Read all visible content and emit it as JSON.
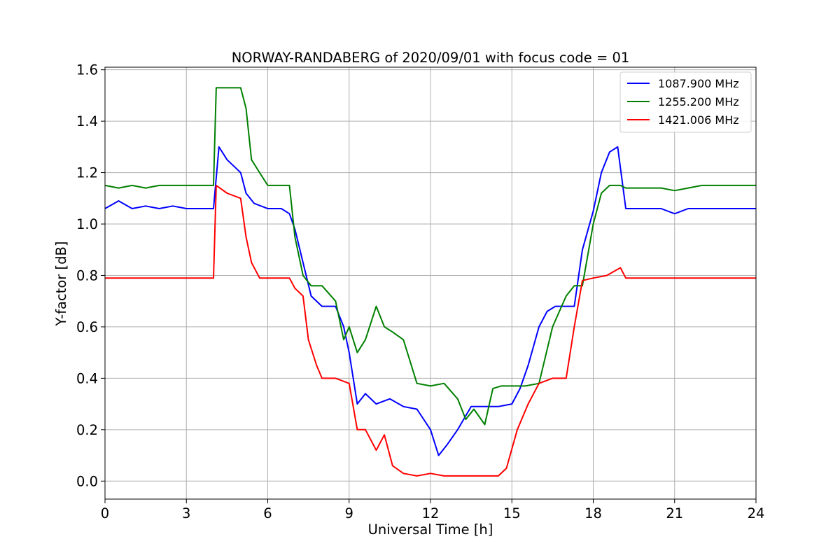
{
  "chart_data": {
    "type": "line",
    "title": "NORWAY-RANDABERG of 2020/09/01 with focus code = 01",
    "xlabel": "Universal Time [h]",
    "ylabel": "Y-factor [dB]",
    "xlim": [
      0,
      24
    ],
    "ylim": [
      -0.07,
      1.61
    ],
    "xticks": [
      0,
      3,
      6,
      9,
      12,
      15,
      18,
      21,
      24
    ],
    "yticks": [
      0.0,
      0.2,
      0.4,
      0.6,
      0.8,
      1.0,
      1.2,
      1.4,
      1.6
    ],
    "grid": true,
    "legend_position": "top-right",
    "series": [
      {
        "name": "1087.900 MHz",
        "color": "#0000ff",
        "x": [
          0,
          0.5,
          1,
          1.5,
          2,
          2.5,
          3,
          3.5,
          4,
          4.2,
          4.5,
          4.8,
          5,
          5.2,
          5.5,
          6,
          6.5,
          6.8,
          7,
          7.3,
          7.6,
          8,
          8.5,
          8.8,
          9,
          9.3,
          9.6,
          10,
          10.5,
          11,
          11.5,
          12,
          12.3,
          12.6,
          13,
          13.5,
          14,
          14.5,
          15,
          15.3,
          15.6,
          16,
          16.3,
          16.6,
          17,
          17.3,
          17.6,
          18,
          18.3,
          18.6,
          18.9,
          19.2,
          19.5,
          20,
          20.5,
          21,
          21.5,
          22,
          22.5,
          23,
          23.5,
          24
        ],
        "y": [
          1.06,
          1.09,
          1.06,
          1.07,
          1.06,
          1.07,
          1.06,
          1.06,
          1.06,
          1.3,
          1.25,
          1.22,
          1.2,
          1.12,
          1.08,
          1.06,
          1.06,
          1.04,
          0.98,
          0.85,
          0.72,
          0.68,
          0.68,
          0.6,
          0.5,
          0.3,
          0.34,
          0.3,
          0.32,
          0.29,
          0.28,
          0.2,
          0.1,
          0.14,
          0.2,
          0.29,
          0.29,
          0.29,
          0.3,
          0.36,
          0.45,
          0.6,
          0.66,
          0.68,
          0.68,
          0.68,
          0.9,
          1.05,
          1.2,
          1.28,
          1.3,
          1.06,
          1.06,
          1.06,
          1.06,
          1.04,
          1.06,
          1.06,
          1.06,
          1.06,
          1.06,
          1.06
        ]
      },
      {
        "name": "1255.200 MHz",
        "color": "#008000",
        "x": [
          0,
          0.5,
          1,
          1.5,
          2,
          2.5,
          3,
          3.5,
          4,
          4.1,
          4.5,
          5,
          5.2,
          5.4,
          5.7,
          6,
          6.5,
          6.8,
          7,
          7.3,
          7.6,
          8,
          8.5,
          8.8,
          9,
          9.3,
          9.6,
          10,
          10.3,
          10.6,
          11,
          11.5,
          12,
          12.5,
          13,
          13.3,
          13.6,
          14,
          14.3,
          14.6,
          15,
          15.5,
          16,
          16.5,
          17,
          17.3,
          17.6,
          18,
          18.3,
          18.6,
          19,
          19.2,
          19.5,
          20,
          20.5,
          21,
          21.5,
          22,
          22.5,
          23,
          23.5,
          24
        ],
        "y": [
          1.15,
          1.14,
          1.15,
          1.14,
          1.15,
          1.15,
          1.15,
          1.15,
          1.15,
          1.53,
          1.53,
          1.53,
          1.45,
          1.25,
          1.2,
          1.15,
          1.15,
          1.15,
          0.95,
          0.8,
          0.76,
          0.76,
          0.7,
          0.55,
          0.6,
          0.5,
          0.55,
          0.68,
          0.6,
          0.58,
          0.55,
          0.38,
          0.37,
          0.38,
          0.32,
          0.24,
          0.28,
          0.22,
          0.36,
          0.37,
          0.37,
          0.37,
          0.38,
          0.6,
          0.72,
          0.76,
          0.76,
          1.0,
          1.12,
          1.15,
          1.15,
          1.14,
          1.14,
          1.14,
          1.14,
          1.13,
          1.14,
          1.15,
          1.15,
          1.15,
          1.15,
          1.15
        ]
      },
      {
        "name": "1421.006 MHz",
        "color": "#ff0000",
        "x": [
          0,
          0.5,
          1,
          1.5,
          2,
          2.5,
          3,
          3.5,
          4,
          4.1,
          4.5,
          5,
          5.2,
          5.4,
          5.7,
          6,
          6.5,
          6.8,
          7,
          7.3,
          7.5,
          7.8,
          8,
          8.5,
          9,
          9.3,
          9.6,
          10,
          10.3,
          10.6,
          11,
          11.5,
          12,
          12.5,
          13,
          13.5,
          14,
          14.5,
          14.8,
          15.2,
          15.6,
          16,
          16.5,
          17,
          17.3,
          17.6,
          18,
          18.5,
          19,
          19.2,
          19.5,
          20,
          20.5,
          21,
          21.5,
          22,
          22.5,
          23,
          23.5,
          24
        ],
        "y": [
          0.79,
          0.79,
          0.79,
          0.79,
          0.79,
          0.79,
          0.79,
          0.79,
          0.79,
          1.15,
          1.12,
          1.1,
          0.95,
          0.85,
          0.79,
          0.79,
          0.79,
          0.79,
          0.75,
          0.72,
          0.55,
          0.45,
          0.4,
          0.4,
          0.38,
          0.2,
          0.2,
          0.12,
          0.18,
          0.06,
          0.03,
          0.02,
          0.03,
          0.02,
          0.02,
          0.02,
          0.02,
          0.02,
          0.05,
          0.2,
          0.3,
          0.38,
          0.4,
          0.4,
          0.6,
          0.78,
          0.79,
          0.8,
          0.83,
          0.79,
          0.79,
          0.79,
          0.79,
          0.79,
          0.79,
          0.79,
          0.79,
          0.79,
          0.79,
          0.79
        ]
      }
    ]
  }
}
